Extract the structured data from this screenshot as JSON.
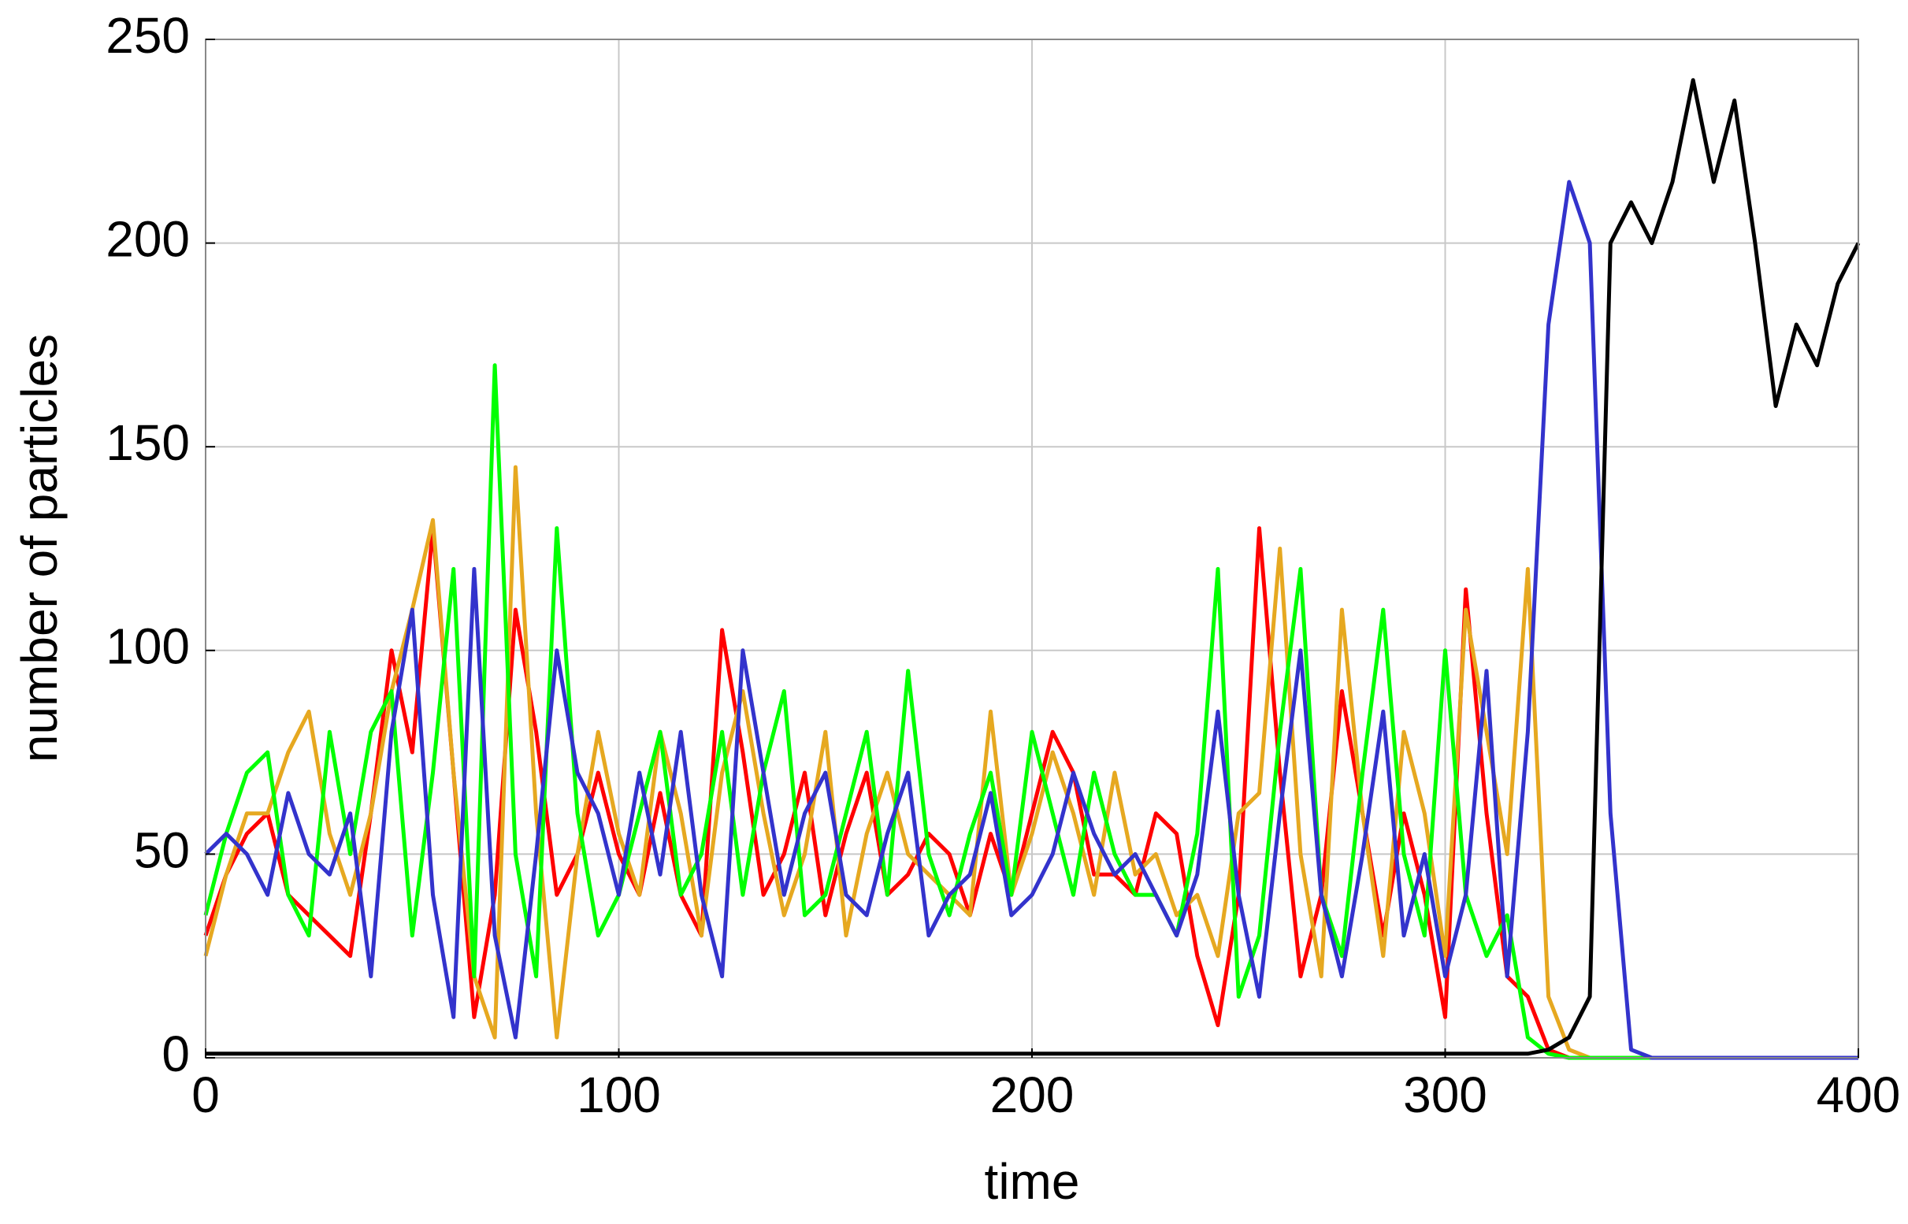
{
  "chart_data": {
    "type": "line",
    "x_label": "time",
    "y_label": "number of particles",
    "x": [
      0,
      5,
      10,
      15,
      20,
      25,
      30,
      35,
      40,
      45,
      50,
      55,
      60,
      65,
      70,
      75,
      80,
      85,
      90,
      95,
      100,
      105,
      110,
      115,
      120,
      125,
      130,
      135,
      140,
      145,
      150,
      155,
      160,
      165,
      170,
      175,
      180,
      185,
      190,
      195,
      200,
      205,
      210,
      215,
      220,
      225,
      230,
      235,
      240,
      245,
      250,
      255,
      260,
      265,
      270,
      275,
      280,
      285,
      290,
      295,
      300,
      305,
      310,
      315,
      320,
      325,
      330,
      335,
      340,
      345,
      350,
      355,
      360,
      365,
      370,
      375,
      380,
      385,
      390,
      395,
      400
    ],
    "series": [
      {
        "color": "#ff0000",
        "values": [
          30,
          45,
          55,
          60,
          40,
          35,
          30,
          25,
          60,
          100,
          75,
          130,
          70,
          10,
          40,
          110,
          80,
          40,
          50,
          70,
          50,
          40,
          65,
          40,
          30,
          105,
          75,
          40,
          50,
          70,
          35,
          55,
          70,
          40,
          45,
          55,
          50,
          35,
          55,
          40,
          60,
          80,
          70,
          45,
          45,
          40,
          60,
          55,
          25,
          8,
          40,
          130,
          70,
          20,
          40,
          90,
          60,
          30,
          60,
          40,
          10,
          115,
          60,
          20,
          15,
          2,
          0,
          0,
          0,
          0,
          0,
          0,
          0,
          0,
          0,
          0,
          0,
          0,
          0,
          0,
          0
        ]
      },
      {
        "color": "#e6a820",
        "values": [
          25,
          45,
          60,
          60,
          75,
          85,
          55,
          40,
          60,
          90,
          110,
          132,
          70,
          20,
          5,
          145,
          60,
          5,
          50,
          80,
          55,
          40,
          80,
          60,
          30,
          70,
          90,
          60,
          35,
          50,
          80,
          30,
          55,
          70,
          50,
          45,
          40,
          35,
          85,
          40,
          55,
          75,
          60,
          40,
          70,
          45,
          50,
          35,
          40,
          25,
          60,
          65,
          125,
          50,
          20,
          110,
          60,
          25,
          80,
          60,
          25,
          110,
          80,
          50,
          120,
          15,
          2,
          0,
          0,
          0,
          0,
          0,
          0,
          0,
          0,
          0,
          0,
          0,
          0,
          0,
          0
        ]
      },
      {
        "color": "#00ff00",
        "values": [
          35,
          55,
          70,
          75,
          40,
          30,
          80,
          50,
          80,
          90,
          30,
          70,
          120,
          20,
          170,
          50,
          20,
          130,
          60,
          30,
          40,
          60,
          80,
          40,
          50,
          80,
          40,
          70,
          90,
          35,
          40,
          60,
          80,
          40,
          95,
          50,
          35,
          55,
          70,
          40,
          80,
          60,
          40,
          70,
          50,
          40,
          40,
          30,
          55,
          120,
          15,
          30,
          80,
          120,
          40,
          25,
          70,
          110,
          50,
          30,
          100,
          40,
          25,
          35,
          5,
          1,
          0,
          0,
          0,
          0,
          0,
          0,
          0,
          0,
          0,
          0,
          0,
          0,
          0,
          0,
          0
        ]
      },
      {
        "color": "#3333cc",
        "values": [
          50,
          55,
          50,
          40,
          65,
          50,
          45,
          60,
          20,
          80,
          110,
          40,
          10,
          120,
          30,
          5,
          50,
          100,
          70,
          60,
          40,
          70,
          45,
          80,
          40,
          20,
          100,
          70,
          40,
          60,
          70,
          40,
          35,
          55,
          70,
          30,
          40,
          45,
          65,
          35,
          40,
          50,
          70,
          55,
          45,
          50,
          40,
          30,
          45,
          85,
          40,
          15,
          60,
          100,
          40,
          20,
          50,
          85,
          30,
          50,
          20,
          40,
          95,
          20,
          80,
          180,
          215,
          200,
          60,
          2,
          0,
          0,
          0,
          0,
          0,
          0,
          0,
          0,
          0,
          0,
          0
        ]
      },
      {
        "color": "#000000",
        "values": [
          1,
          1,
          1,
          1,
          1,
          1,
          1,
          1,
          1,
          1,
          1,
          1,
          1,
          1,
          1,
          1,
          1,
          1,
          1,
          1,
          1,
          1,
          1,
          1,
          1,
          1,
          1,
          1,
          1,
          1,
          1,
          1,
          1,
          1,
          1,
          1,
          1,
          1,
          1,
          1,
          1,
          1,
          1,
          1,
          1,
          1,
          1,
          1,
          1,
          1,
          1,
          1,
          1,
          1,
          1,
          1,
          1,
          1,
          1,
          1,
          1,
          1,
          1,
          1,
          1,
          2,
          5,
          15,
          200,
          210,
          200,
          215,
          240,
          215,
          235,
          200,
          160,
          180,
          170,
          190,
          200
        ]
      }
    ],
    "xlim": [
      0,
      400
    ],
    "xticks": [
      0,
      100,
      200,
      300,
      400
    ],
    "ylim": [
      0,
      250
    ],
    "yticks": [
      0,
      50,
      100,
      150,
      200,
      250
    ],
    "grid": true
  }
}
